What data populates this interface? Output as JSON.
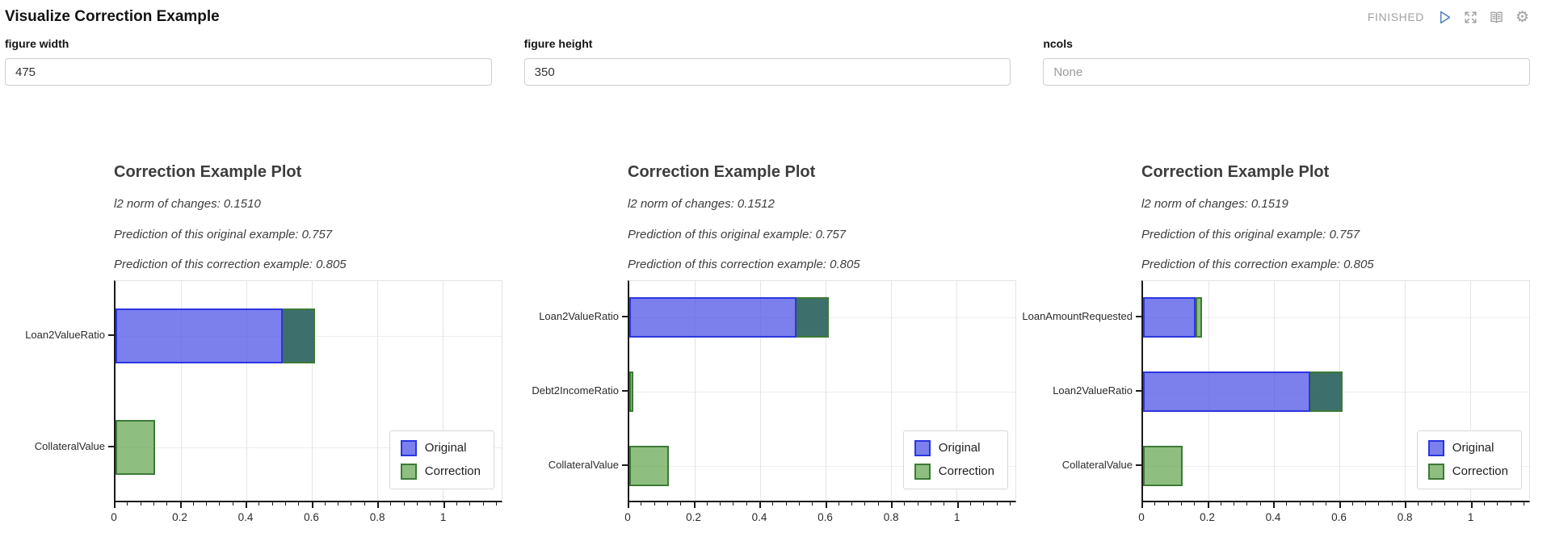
{
  "header": {
    "title": "Visualize Correction Example",
    "status": "FINISHED",
    "icons": [
      "play-icon",
      "expand-icon",
      "book-icon",
      "gear-icon"
    ]
  },
  "controls": [
    {
      "label": "figure width",
      "value": "475",
      "placeholder": ""
    },
    {
      "label": "figure height",
      "value": "350",
      "placeholder": ""
    },
    {
      "label": "ncols",
      "value": "",
      "placeholder": "None"
    }
  ],
  "colors": {
    "original_fill": "rgba(86,92,232,0.78)",
    "original_edge": "#2b36e1",
    "correction_fill": "rgba(95,162,75,0.7)",
    "correction_edge": "#3c7a35",
    "overlap_fill": "rgba(40,96,93,0.9)",
    "play_blue": "#4679bd",
    "icon_gray": "#9e9e9e"
  },
  "chart_data": [
    {
      "type": "bar",
      "orientation": "horizontal",
      "title": "Correction Example Plot",
      "annotations": [
        "l2 norm of changes: 0.1510",
        "Prediction of this original example: 0.757",
        "Prediction of this correction example: 0.805"
      ],
      "categories": [
        "Loan2ValueRatio",
        "CollateralValue"
      ],
      "series": [
        {
          "name": "Original",
          "values": [
            0.51,
            0.0
          ]
        },
        {
          "name": "Correction",
          "values": [
            0.61,
            0.12
          ]
        }
      ],
      "xlim": [
        0,
        1.18
      ],
      "xticks": [
        0,
        0.2,
        0.4,
        0.6,
        0.8,
        1
      ],
      "xtick_labels": [
        "0",
        "0.2",
        "0.4",
        "0.6",
        "0.8",
        "1"
      ],
      "minor_tick": 0.04,
      "grid": true,
      "legend": [
        "Original",
        "Correction"
      ],
      "legend_position": "lower right"
    },
    {
      "type": "bar",
      "orientation": "horizontal",
      "title": "Correction Example Plot",
      "annotations": [
        "l2 norm of changes: 0.1512",
        "Prediction of this original example: 0.757",
        "Prediction of this correction example: 0.805"
      ],
      "categories": [
        "Loan2ValueRatio",
        "Debt2IncomeRatio",
        "CollateralValue"
      ],
      "series": [
        {
          "name": "Original",
          "values": [
            0.51,
            0.0,
            0.0
          ]
        },
        {
          "name": "Correction",
          "values": [
            0.61,
            0.012,
            0.12
          ]
        }
      ],
      "xlim": [
        0,
        1.18
      ],
      "xticks": [
        0,
        0.2,
        0.4,
        0.6,
        0.8,
        1
      ],
      "xtick_labels": [
        "0",
        "0.2",
        "0.4",
        "0.6",
        "0.8",
        "1"
      ],
      "minor_tick": 0.04,
      "grid": true,
      "legend": [
        "Original",
        "Correction"
      ],
      "legend_position": "lower right"
    },
    {
      "type": "bar",
      "orientation": "horizontal",
      "title": "Correction Example Plot",
      "annotations": [
        "l2 norm of changes: 0.1519",
        "Prediction of this original example: 0.757",
        "Prediction of this correction example: 0.805"
      ],
      "categories": [
        "LoanAmountRequested",
        "Loan2ValueRatio",
        "CollateralValue"
      ],
      "series": [
        {
          "name": "Original",
          "values": [
            0.16,
            0.51,
            0.0
          ]
        },
        {
          "name": "Correction",
          "values": [
            0.18,
            0.61,
            0.12
          ]
        }
      ],
      "xlim": [
        0,
        1.18
      ],
      "xticks": [
        0,
        0.2,
        0.4,
        0.6,
        0.8,
        1
      ],
      "xtick_labels": [
        "0",
        "0.2",
        "0.4",
        "0.6",
        "0.8",
        "1"
      ],
      "minor_tick": 0.04,
      "grid": true,
      "legend": [
        "Original",
        "Correction"
      ],
      "legend_position": "lower right"
    }
  ]
}
